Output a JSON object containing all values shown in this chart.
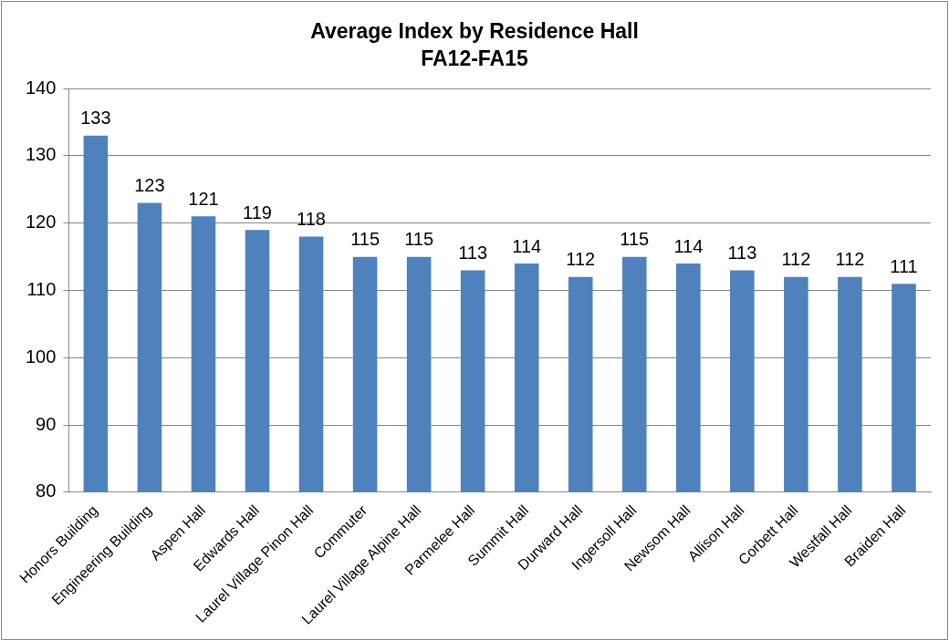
{
  "chart_data": {
    "type": "bar",
    "title": "Average Index by Residence Hall",
    "subtitle": "FA12-FA15",
    "categories": [
      "Honors Building",
      "Engineering Building",
      "Aspen Hall",
      "Edwards Hall",
      "Laurel Village Pinon Hall",
      "Commuter",
      "Laurel Village Alpine Hall",
      "Parmelee Hall",
      "Summit Hall",
      "Durward Hall",
      "Ingersoll Hall",
      "Newsom Hall",
      "Allison Hall",
      "Corbett Hall",
      "Westfall Hall",
      "Braiden Hall"
    ],
    "values": [
      133,
      123,
      121,
      119,
      118,
      115,
      115,
      113,
      114,
      112,
      115,
      114,
      113,
      112,
      112,
      111
    ],
    "color": "#4f81bd",
    "ylim": [
      80,
      140
    ],
    "yticks": [
      80,
      90,
      100,
      110,
      120,
      130,
      140
    ],
    "grid": "y",
    "data_labels": true
  }
}
